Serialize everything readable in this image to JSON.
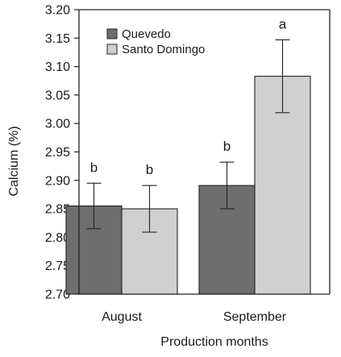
{
  "chart_data": {
    "type": "bar",
    "title": "",
    "xlabel": "Production months",
    "ylabel": "Calcium (%)",
    "ylim": [
      2.7,
      3.2
    ],
    "yticks": [
      "2.70",
      "2.75",
      "2.80",
      "2.85",
      "2.90",
      "2.95",
      "3.00",
      "3.05",
      "3.10",
      "3.15",
      "3.20"
    ],
    "categories": [
      "August",
      "September"
    ],
    "legend_position": "top-left",
    "grid": false,
    "series": [
      {
        "name": "Quevedo",
        "color": "#6e6e6e",
        "values": [
          2.855,
          2.891
        ],
        "error": [
          0.04,
          0.041
        ],
        "letters": [
          "b",
          "b"
        ]
      },
      {
        "name": "Santo Domingo",
        "color": "#d0d0d0",
        "values": [
          2.85,
          3.083
        ],
        "error": [
          0.041,
          0.064
        ],
        "letters": [
          "b",
          "a"
        ]
      }
    ]
  }
}
